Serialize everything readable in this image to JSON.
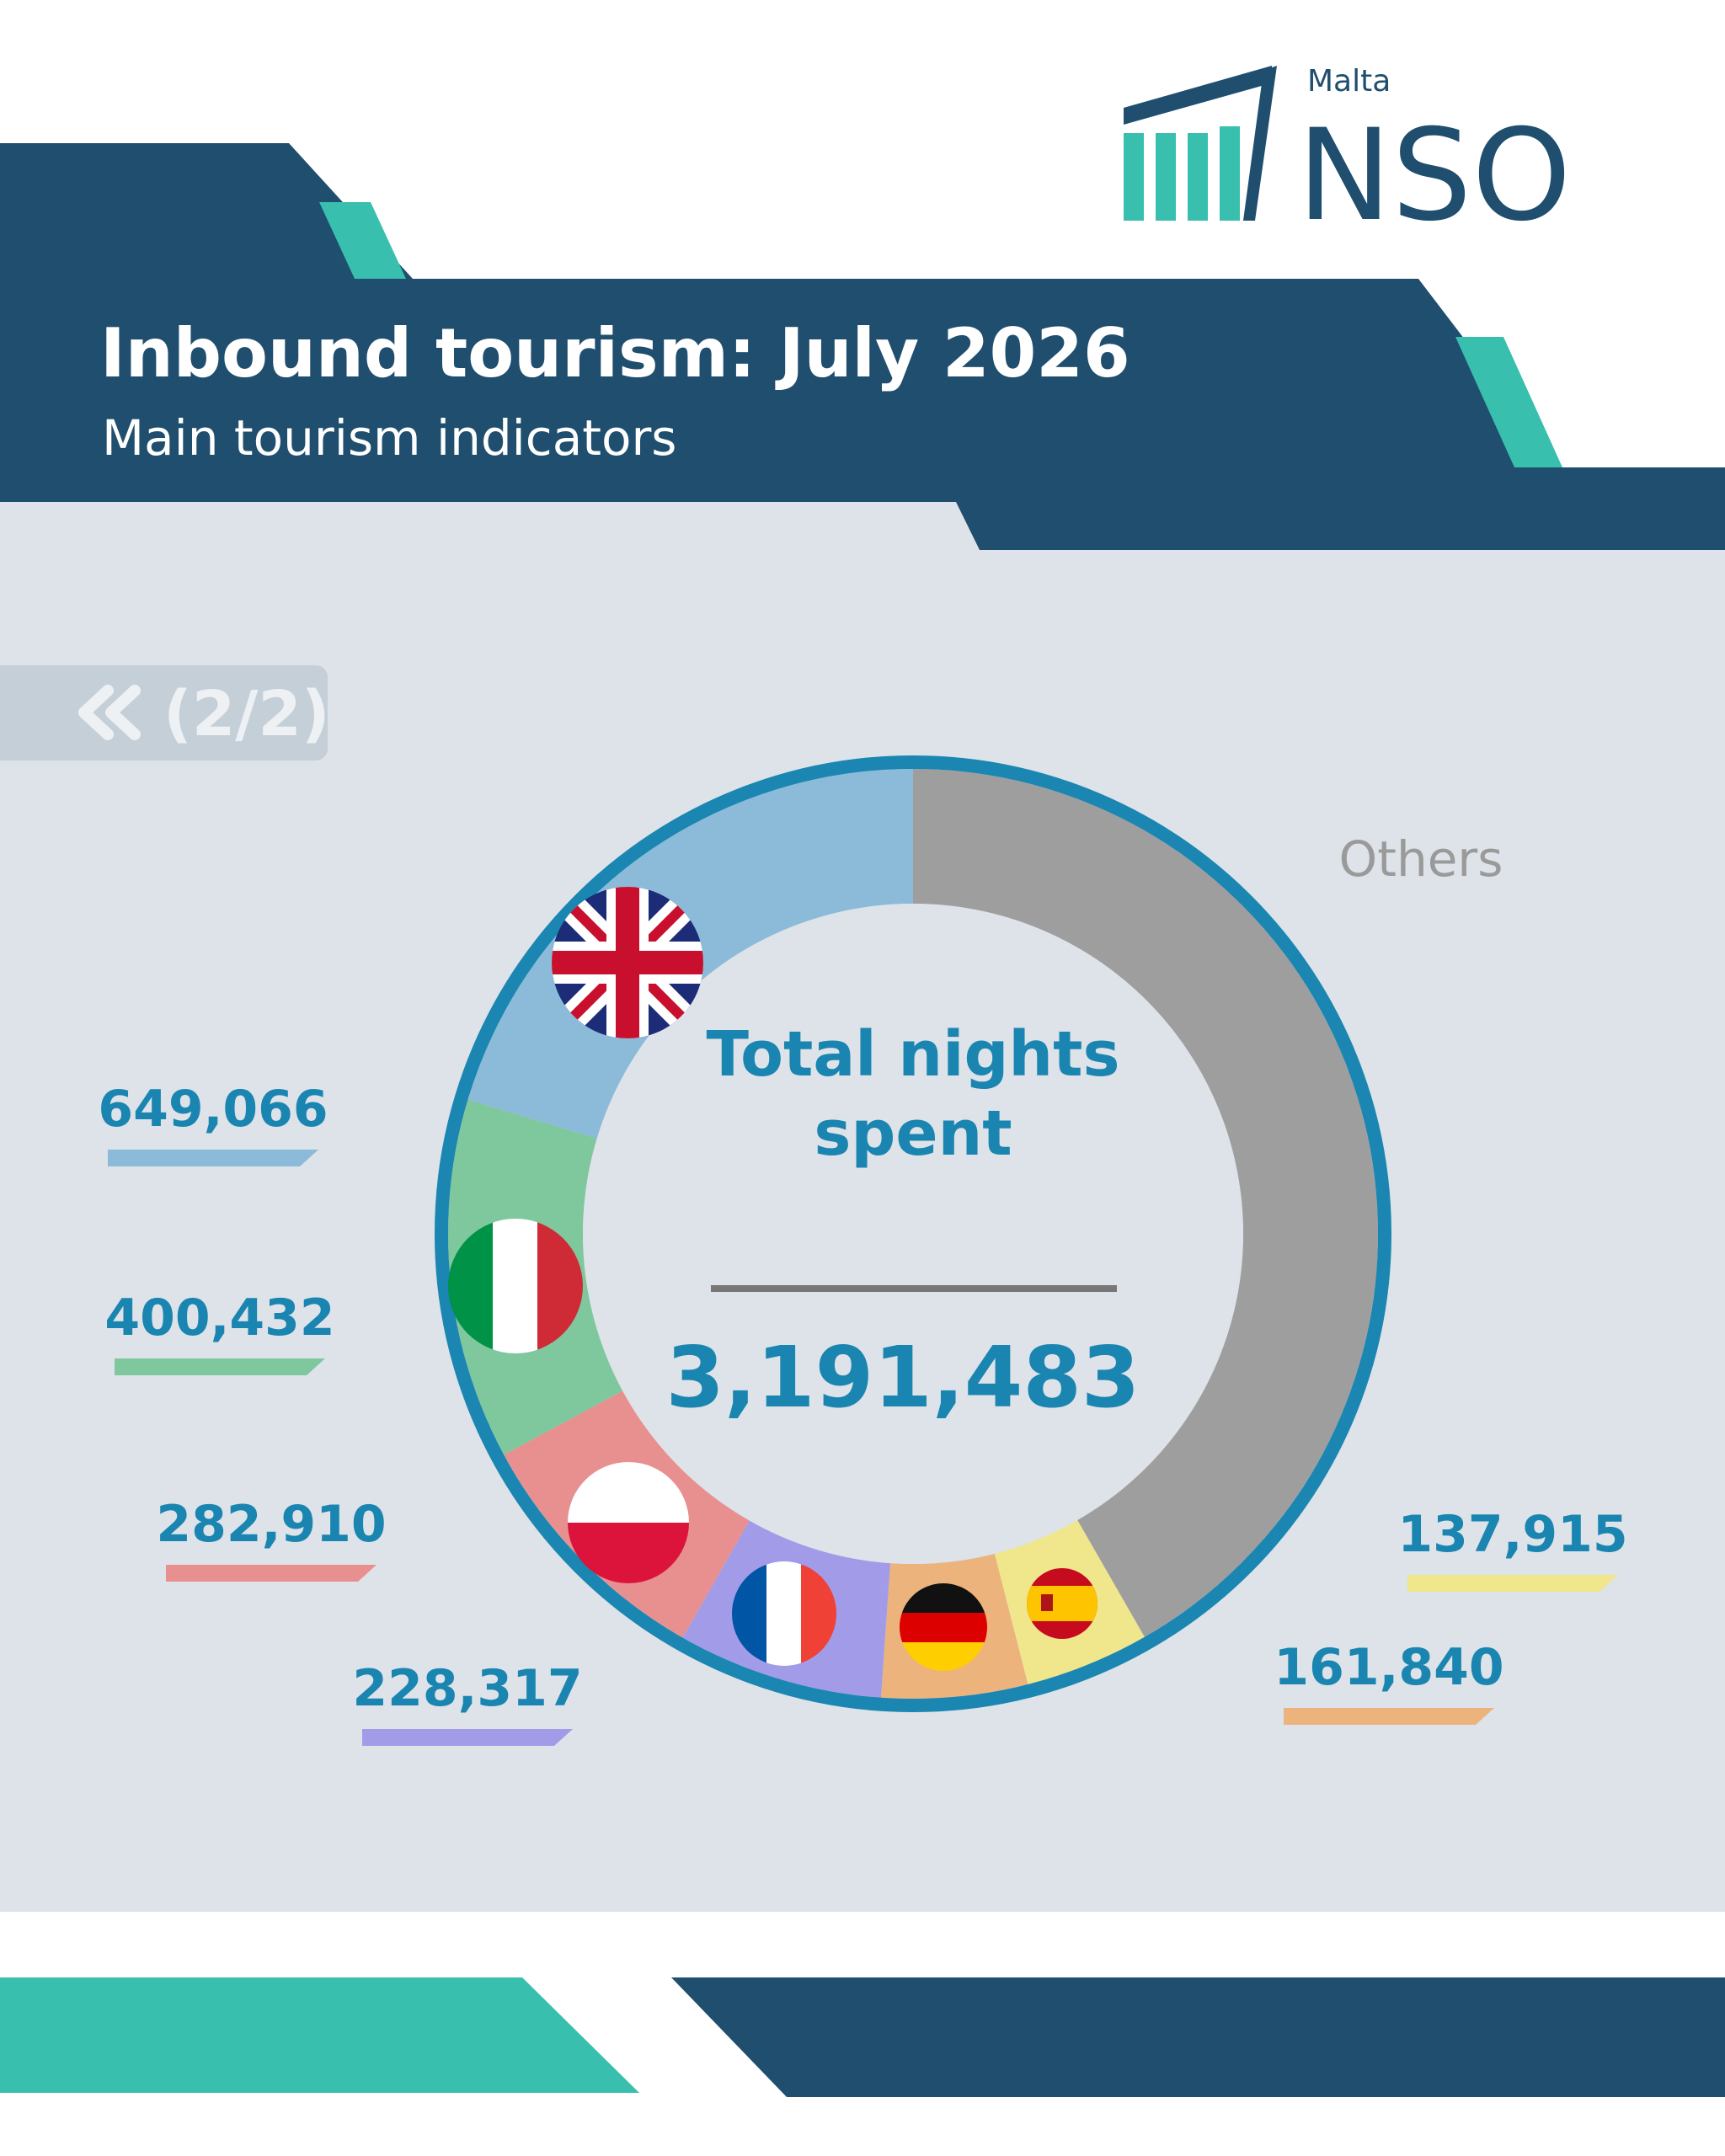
{
  "header": {
    "logo_small": "Malta",
    "logo": "NSO",
    "title": "Inbound tourism: July 2026",
    "subtitle": "Main tourism indicators"
  },
  "nav": {
    "label": "(2/2)"
  },
  "chart_data": {
    "type": "donut",
    "center_title": "Total nights spent",
    "center_value": "3,191,483",
    "categories": [
      "Others",
      null,
      null,
      null,
      null,
      null,
      null
    ],
    "values": [
      1331003,
      137915,
      161840,
      228317,
      282910,
      400432,
      649066
    ],
    "value_labels": [
      null,
      "137,915",
      "161,840",
      "228,317",
      "282,910",
      "400,432",
      "649,066"
    ],
    "colors": [
      "#9e9e9e",
      "#f0e68c",
      "#ecb47c",
      "#a29be8",
      "#e89090",
      "#7fc79c",
      "#8bbbd9"
    ]
  }
}
